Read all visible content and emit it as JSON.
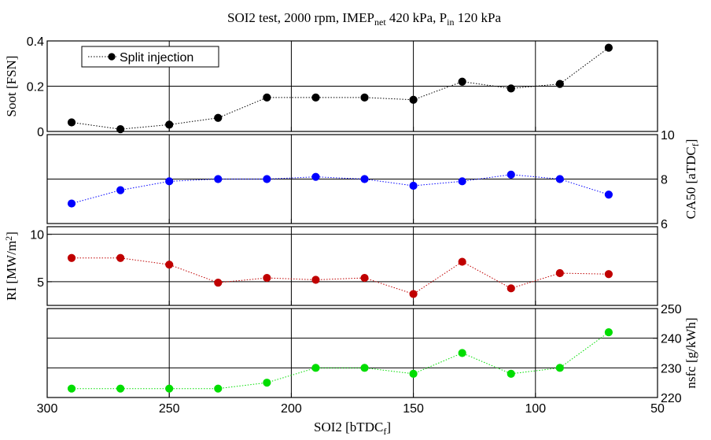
{
  "title": {
    "pre": "SOI2 test, 2000 rpm, IMEP",
    "sub1": "net",
    "mid": " 420 kPa, P",
    "sub2": "in",
    "post": " 120 kPa"
  },
  "chart_data": {
    "type": "line",
    "shared_x": [
      290,
      270,
      250,
      230,
      210,
      190,
      170,
      150,
      130,
      110,
      90,
      70
    ],
    "xlim": [
      300,
      50
    ],
    "xticks": [
      "300",
      "250",
      "200",
      "150",
      "100",
      "50"
    ],
    "xlabel": {
      "main": "SOI2 [bTDC",
      "sub": "f",
      "close": "]"
    },
    "legend": {
      "entry": "Split injection",
      "placement": "top-left"
    },
    "grid": true,
    "panels": [
      {
        "name": "soot",
        "ylabel": "Soot [FSN]",
        "yaxis_side": "left",
        "ylim": [
          0,
          0.4
        ],
        "yticks": [
          "0",
          "0.2",
          "0.4"
        ],
        "color": "#000000",
        "values": [
          0.04,
          0.01,
          0.03,
          0.06,
          0.15,
          0.15,
          0.15,
          0.14,
          0.22,
          0.19,
          0.21,
          0.37
        ]
      },
      {
        "name": "ca50",
        "ylabel": {
          "main": "CA50 [aTDC",
          "sub": "f",
          "close": "]"
        },
        "yaxis_side": "right",
        "ylim": [
          6,
          10
        ],
        "yticks": [
          "6",
          "8",
          "10"
        ],
        "color": "#0000ff",
        "values": [
          6.9,
          7.5,
          7.9,
          8.0,
          8.0,
          8.1,
          8.0,
          7.7,
          7.9,
          8.2,
          8.0,
          7.3
        ]
      },
      {
        "name": "ri",
        "ylabel": {
          "main": "RI [MW/m",
          "sup": "2",
          "close": "]"
        },
        "yaxis_side": "left",
        "ylim": [
          2.5,
          10.8
        ],
        "yticks": [
          "5",
          "10"
        ],
        "color": "#c00000",
        "values": [
          7.5,
          7.5,
          6.8,
          4.9,
          5.4,
          5.2,
          5.4,
          3.7,
          7.1,
          4.3,
          5.9,
          5.8
        ]
      },
      {
        "name": "nsfc",
        "ylabel": "nsfc [g/kWh]",
        "yaxis_side": "right",
        "ylim": [
          220,
          250
        ],
        "yticks": [
          "220",
          "230",
          "240",
          "250"
        ],
        "color": "#00dd00",
        "values": [
          223,
          223,
          223,
          223,
          225,
          230,
          230,
          228,
          235,
          228,
          230,
          242
        ]
      }
    ]
  }
}
